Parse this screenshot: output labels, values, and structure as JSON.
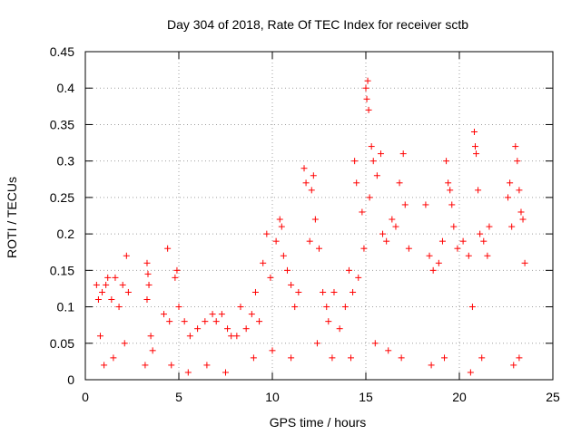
{
  "chart_data": {
    "type": "scatter",
    "title": "Day 304 of 2018, Rate Of TEC Index for receiver sctb",
    "xlabel": "GPS time / hours",
    "ylabel": "ROTI / TECUs",
    "xlim": [
      0,
      25
    ],
    "ylim": [
      0,
      0.45
    ],
    "xticks": [
      0,
      5,
      10,
      15,
      20,
      25
    ],
    "xtick_labels": [
      "0",
      "5",
      "10",
      "15",
      "20",
      "25"
    ],
    "yticks": [
      0,
      0.05,
      0.1,
      0.15,
      0.2,
      0.25,
      0.3,
      0.35,
      0.4,
      0.45
    ],
    "ytick_labels": [
      "0",
      "0.05",
      "0.1",
      "0.15",
      "0.2",
      "0.25",
      "0.3",
      "0.35",
      "0.4",
      "0.45"
    ],
    "grid": true,
    "marker": "+",
    "color": "#ff0000",
    "series": [
      {
        "name": "ROTI",
        "points": [
          [
            0.6,
            0.13
          ],
          [
            0.7,
            0.11
          ],
          [
            0.8,
            0.06
          ],
          [
            0.9,
            0.12
          ],
          [
            1.1,
            0.13
          ],
          [
            1.2,
            0.14
          ],
          [
            1.4,
            0.11
          ],
          [
            1.6,
            0.14
          ],
          [
            1.8,
            0.1
          ],
          [
            2.0,
            0.13
          ],
          [
            2.2,
            0.17
          ],
          [
            2.3,
            0.12
          ],
          [
            1.0,
            0.02
          ],
          [
            1.5,
            0.03
          ],
          [
            2.1,
            0.05
          ],
          [
            3.3,
            0.16
          ],
          [
            3.35,
            0.145
          ],
          [
            3.4,
            0.13
          ],
          [
            3.3,
            0.11
          ],
          [
            3.5,
            0.06
          ],
          [
            3.6,
            0.04
          ],
          [
            3.2,
            0.02
          ],
          [
            4.2,
            0.09
          ],
          [
            4.4,
            0.18
          ],
          [
            4.5,
            0.08
          ],
          [
            4.8,
            0.14
          ],
          [
            4.9,
            0.15
          ],
          [
            5.0,
            0.1
          ],
          [
            5.3,
            0.08
          ],
          [
            5.6,
            0.06
          ],
          [
            6.0,
            0.07
          ],
          [
            6.4,
            0.08
          ],
          [
            6.8,
            0.09
          ],
          [
            7.0,
            0.08
          ],
          [
            7.3,
            0.09
          ],
          [
            7.6,
            0.07
          ],
          [
            7.8,
            0.06
          ],
          [
            4.6,
            0.02
          ],
          [
            5.5,
            0.01
          ],
          [
            6.5,
            0.02
          ],
          [
            7.5,
            0.01
          ],
          [
            8.1,
            0.06
          ],
          [
            8.3,
            0.1
          ],
          [
            8.6,
            0.07
          ],
          [
            8.9,
            0.09
          ],
          [
            9.1,
            0.12
          ],
          [
            9.3,
            0.08
          ],
          [
            9.5,
            0.16
          ],
          [
            9.7,
            0.2
          ],
          [
            9.9,
            0.14
          ],
          [
            10.2,
            0.19
          ],
          [
            10.4,
            0.22
          ],
          [
            10.5,
            0.21
          ],
          [
            10.6,
            0.17
          ],
          [
            10.8,
            0.15
          ],
          [
            11.0,
            0.13
          ],
          [
            11.2,
            0.1
          ],
          [
            11.4,
            0.12
          ],
          [
            9.0,
            0.03
          ],
          [
            10.0,
            0.04
          ],
          [
            11.0,
            0.03
          ],
          [
            11.7,
            0.29
          ],
          [
            11.8,
            0.27
          ],
          [
            12.1,
            0.26
          ],
          [
            12.2,
            0.28
          ],
          [
            12.3,
            0.22
          ],
          [
            12.0,
            0.19
          ],
          [
            12.5,
            0.18
          ],
          [
            12.7,
            0.12
          ],
          [
            12.9,
            0.1
          ],
          [
            13.0,
            0.08
          ],
          [
            13.3,
            0.12
          ],
          [
            13.6,
            0.07
          ],
          [
            13.9,
            0.1
          ],
          [
            12.4,
            0.05
          ],
          [
            13.2,
            0.03
          ],
          [
            14.1,
            0.15
          ],
          [
            14.3,
            0.12
          ],
          [
            14.4,
            0.3
          ],
          [
            14.5,
            0.27
          ],
          [
            14.6,
            0.14
          ],
          [
            14.8,
            0.23
          ],
          [
            14.9,
            0.18
          ],
          [
            15.0,
            0.4
          ],
          [
            15.05,
            0.385
          ],
          [
            15.1,
            0.41
          ],
          [
            15.15,
            0.37
          ],
          [
            15.2,
            0.25
          ],
          [
            15.3,
            0.32
          ],
          [
            15.4,
            0.3
          ],
          [
            15.6,
            0.28
          ],
          [
            15.8,
            0.31
          ],
          [
            15.9,
            0.2
          ],
          [
            14.2,
            0.03
          ],
          [
            15.5,
            0.05
          ],
          [
            16.1,
            0.19
          ],
          [
            16.4,
            0.22
          ],
          [
            16.6,
            0.21
          ],
          [
            16.8,
            0.27
          ],
          [
            17.0,
            0.31
          ],
          [
            17.1,
            0.24
          ],
          [
            17.3,
            0.18
          ],
          [
            16.2,
            0.04
          ],
          [
            16.9,
            0.03
          ],
          [
            18.2,
            0.24
          ],
          [
            18.4,
            0.17
          ],
          [
            18.6,
            0.15
          ],
          [
            18.9,
            0.16
          ],
          [
            19.1,
            0.19
          ],
          [
            19.3,
            0.3
          ],
          [
            19.4,
            0.27
          ],
          [
            19.5,
            0.26
          ],
          [
            19.6,
            0.24
          ],
          [
            19.7,
            0.21
          ],
          [
            19.9,
            0.18
          ],
          [
            18.5,
            0.02
          ],
          [
            19.2,
            0.03
          ],
          [
            20.2,
            0.19
          ],
          [
            20.5,
            0.17
          ],
          [
            20.7,
            0.1
          ],
          [
            20.8,
            0.34
          ],
          [
            20.85,
            0.32
          ],
          [
            20.9,
            0.31
          ],
          [
            21.0,
            0.26
          ],
          [
            21.1,
            0.2
          ],
          [
            21.3,
            0.19
          ],
          [
            21.5,
            0.17
          ],
          [
            21.6,
            0.21
          ],
          [
            20.6,
            0.01
          ],
          [
            21.2,
            0.03
          ],
          [
            22.6,
            0.25
          ],
          [
            22.7,
            0.27
          ],
          [
            22.8,
            0.21
          ],
          [
            23.0,
            0.32
          ],
          [
            23.1,
            0.3
          ],
          [
            23.2,
            0.26
          ],
          [
            23.3,
            0.23
          ],
          [
            23.4,
            0.22
          ],
          [
            23.5,
            0.16
          ],
          [
            22.9,
            0.02
          ],
          [
            23.2,
            0.03
          ]
        ]
      }
    ]
  }
}
